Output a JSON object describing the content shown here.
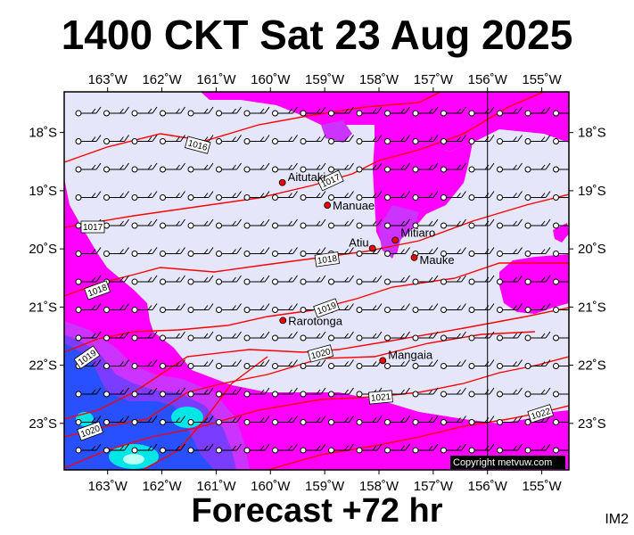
{
  "header": {
    "title": "1400 CKT Sat 23 Aug 2025"
  },
  "footer": {
    "forecast": "Forecast +72 hr",
    "image_id": "IM2"
  },
  "copyright": "Copyright metvuw.com",
  "colors": {
    "background": "#e6e6fa",
    "precip_light": "#ff00ff",
    "precip_mid": "#cc33ff",
    "precip_heavy": "#7a3cff",
    "precip_very_heavy": "#2850ff",
    "precip_extreme": "#00e5e5",
    "isobar": "#ff0000",
    "town_marker": "#ee0000"
  },
  "map": {
    "lon_range": [
      -163.8,
      -154.5
    ],
    "lat_range": [
      -23.8,
      -17.3
    ],
    "lon_ticks": [
      {
        "value": -163,
        "label": "163˚W"
      },
      {
        "value": -162,
        "label": "162˚W"
      },
      {
        "value": -161,
        "label": "161˚W"
      },
      {
        "value": -160,
        "label": "160˚W"
      },
      {
        "value": -159,
        "label": "159˚W"
      },
      {
        "value": -158,
        "label": "158˚W"
      },
      {
        "value": -157,
        "label": "157˚W"
      },
      {
        "value": -156,
        "label": "156˚W"
      },
      {
        "value": -155,
        "label": "155˚W"
      }
    ],
    "lat_ticks": [
      {
        "value": -18,
        "label": "18˚S"
      },
      {
        "value": -19,
        "label": "19˚S"
      },
      {
        "value": -20,
        "label": "20˚S"
      },
      {
        "value": -21,
        "label": "21˚S"
      },
      {
        "value": -22,
        "label": "22˚S"
      },
      {
        "value": -23,
        "label": "23˚S"
      }
    ],
    "meridian_line_lon": -156,
    "towns": [
      {
        "name": "Aitutaki",
        "lon": -159.78,
        "lat": -18.86
      },
      {
        "name": "Manuae",
        "lon": -158.95,
        "lat": -19.25
      },
      {
        "name": "Atiu",
        "lon": -158.12,
        "lat": -19.99
      },
      {
        "name": "Mitiaro",
        "lon": -157.7,
        "lat": -19.85
      },
      {
        "name": "Mauke",
        "lon": -157.35,
        "lat": -20.15
      },
      {
        "name": "Rarotonga",
        "lon": -159.77,
        "lat": -21.23
      },
      {
        "name": "Mangaia",
        "lon": -157.93,
        "lat": -21.92
      }
    ],
    "isobar_labels": [
      "1016",
      "1017",
      "1017",
      "1018",
      "1018",
      "1019",
      "1019",
      "1020",
      "1020",
      "1021",
      "1022"
    ],
    "wind_barbs": "light easterly-southeasterly, 5–15 kt across the domain"
  }
}
